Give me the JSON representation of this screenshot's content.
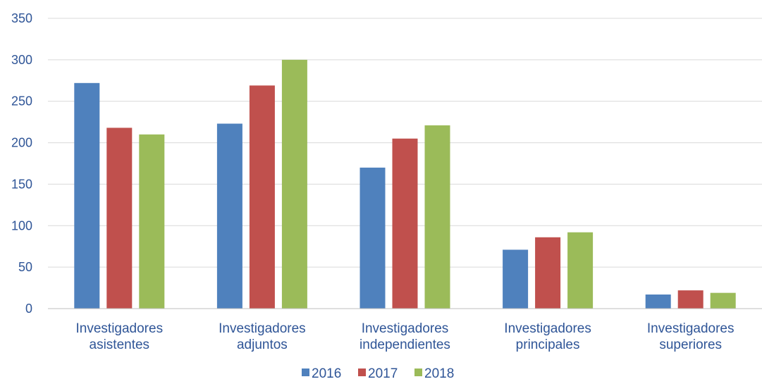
{
  "chart_data": {
    "type": "bar",
    "categories": [
      [
        "Investigadores",
        "asistentes"
      ],
      [
        "Investigadores",
        "adjuntos"
      ],
      [
        "Investigadores",
        "independientes"
      ],
      [
        "Investigadores",
        "principales"
      ],
      [
        "Investigadores",
        "superiores"
      ]
    ],
    "series": [
      {
        "name": "2016",
        "color": "#4F81BD",
        "values": [
          272,
          223,
          170,
          71,
          17
        ]
      },
      {
        "name": "2017",
        "color": "#C0504D",
        "values": [
          218,
          269,
          205,
          86,
          22
        ]
      },
      {
        "name": "2018",
        "color": "#9BBB59",
        "values": [
          210,
          300,
          221,
          92,
          19
        ]
      }
    ],
    "ylim": [
      0,
      350
    ],
    "yticks": [
      "0",
      "50",
      "100",
      "150",
      "200",
      "250",
      "300",
      "350"
    ],
    "grid": true,
    "legend_position": "bottom",
    "title": "",
    "xlabel": "",
    "ylabel": ""
  }
}
